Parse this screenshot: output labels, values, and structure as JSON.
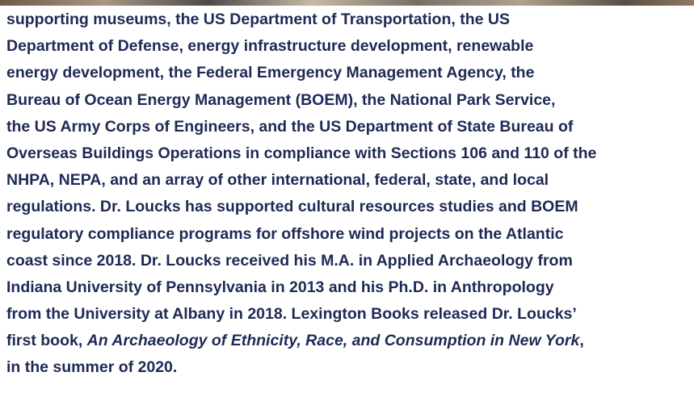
{
  "paragraph": {
    "lines": [
      "supporting museums, the US Department of Transportation, the US",
      "Department of Defense, energy infrastructure development, renewable",
      "energy development, the Federal Emergency Management Agency, the",
      "Bureau of Ocean Energy Management (BOEM), the National Park Service,",
      "the US Army Corps of Engineers, and the US Department of State Bureau of",
      "Overseas Buildings Operations in compliance with Sections 106 and 110 of the",
      "NHPA, NEPA, and an array of other international, federal, state, and local",
      "regulations. Dr. Loucks has supported cultural resources studies and BOEM",
      "regulatory compliance programs for offshore wind projects on the Atlantic",
      "coast since 2018. Dr. Loucks received his M.A. in Applied Archaeology from",
      "Indiana University of Pennsylvania in 2013 and his Ph.D. in Anthropology",
      "from the University at Albany in 2018. Lexington Books released Dr. Loucks’"
    ],
    "book_line": {
      "before": "first book, ",
      "title": "An Archaeology of Ethnicity, Race, and Consumption in New York",
      "after": ","
    },
    "last_line": "in the summer of 2020."
  }
}
